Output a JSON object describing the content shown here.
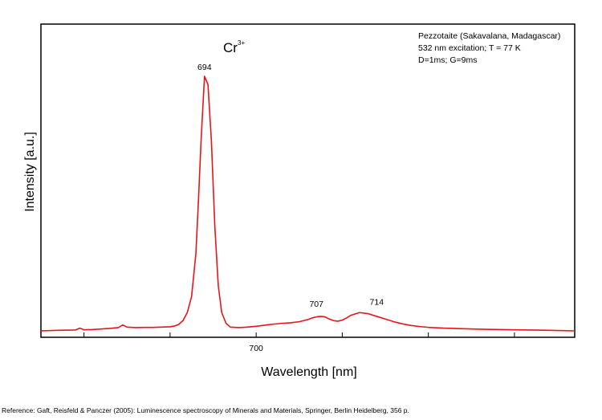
{
  "chart_data": {
    "type": "line",
    "xlabel": "Wavelength [nm]",
    "ylabel": "Intensity [a.u.]",
    "xlim": [
      675,
      737
    ],
    "ylim": [
      0,
      100
    ],
    "x_ticks": [
      680,
      690,
      700,
      710,
      720,
      730
    ],
    "x_tick_labels": [
      {
        "value": 700,
        "label": "700"
      }
    ],
    "grid": false,
    "line_color": "#e8141b",
    "info_lines": [
      "Pezzotaite (Sakavalana, Madagascar)",
      "532 nm excitation; T = 77 K",
      "D=1ms; G=9ms"
    ],
    "ion_label": {
      "base": "Cr",
      "superscript": "3+"
    },
    "peak_labels": [
      {
        "x": 694,
        "y": 96,
        "text": "694"
      },
      {
        "x": 707,
        "y": 7.8,
        "text": "707"
      },
      {
        "x": 714,
        "y": 8.5,
        "text": "714"
      }
    ],
    "series": [
      {
        "x": [
          675,
          677,
          679,
          679.5,
          680,
          681,
          682,
          683,
          684,
          684.5,
          685,
          686,
          687,
          688,
          689,
          690,
          690.5,
          691,
          691.5,
          692,
          692.5,
          693,
          693.3,
          693.6,
          694,
          694.4,
          694.8,
          695.2,
          695.6,
          696,
          696.5,
          697,
          698,
          699,
          700,
          701,
          702,
          703,
          704,
          705,
          706,
          706.5,
          707,
          707.5,
          708,
          708.5,
          709,
          709.5,
          710,
          710.5,
          711,
          712,
          713,
          714,
          715,
          716,
          717,
          718,
          719,
          720,
          722,
          724,
          726,
          728,
          730,
          732,
          734,
          737
        ],
        "y": [
          1.2,
          1.4,
          1.5,
          2.2,
          1.6,
          1.7,
          1.9,
          2.1,
          2.4,
          3.4,
          2.6,
          2.4,
          2.5,
          2.5,
          2.6,
          2.7,
          3.0,
          3.6,
          5.0,
          8.0,
          14,
          30,
          50,
          72,
          96,
          93,
          72,
          40,
          18,
          8.0,
          4.0,
          2.6,
          2.4,
          2.6,
          2.9,
          3.3,
          3.7,
          4.0,
          4.2,
          4.6,
          5.4,
          6.0,
          6.4,
          6.6,
          6.4,
          5.6,
          5.0,
          4.8,
          5.2,
          6.0,
          7.0,
          8.0,
          7.6,
          6.6,
          5.6,
          4.6,
          3.8,
          3.2,
          2.8,
          2.5,
          2.2,
          2.0,
          1.8,
          1.7,
          1.6,
          1.5,
          1.4,
          1.2
        ]
      }
    ]
  },
  "reference": "Reference: Gaft, Reisfeld & Panczer (2005): Luminescence spectroscopy of Minerals and Materials, Springer, Berlin Heidelberg, 356 p."
}
